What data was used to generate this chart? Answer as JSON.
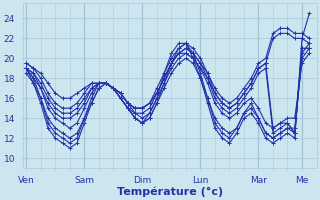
{
  "background_color": "#cce5ee",
  "grid_color": "#aaccdd",
  "line_color": "#2233aa",
  "marker": "+",
  "marker_size": 3,
  "linewidth": 0.8,
  "xlabel": "Température (°c)",
  "xlabel_fontsize": 8,
  "ytick_labels": [
    "10",
    "12",
    "14",
    "16",
    "18",
    "20",
    "22",
    "24"
  ],
  "ytick_values": [
    10,
    12,
    14,
    16,
    18,
    20,
    22,
    24
  ],
  "ylim": [
    9.0,
    25.5
  ],
  "xtick_labels": [
    "Ven",
    "Sam",
    "Dim",
    "Lun",
    "Mar",
    "Me"
  ],
  "xtick_positions": [
    0,
    8,
    16,
    24,
    32,
    38
  ],
  "xlim": [
    -0.5,
    40
  ],
  "minor_xtick_step": 2,
  "series": [
    [
      19.0,
      18.0,
      16.0,
      13.5,
      12.5,
      12.0,
      11.5,
      12.0,
      14.0,
      16.0,
      17.5,
      17.5,
      17.0,
      16.0,
      15.0,
      14.0,
      13.5,
      14.0,
      15.5,
      17.5,
      19.5,
      21.0,
      21.5,
      20.5,
      18.5,
      16.0,
      13.5,
      12.5,
      12.0,
      13.0,
      14.5,
      15.0,
      14.0,
      12.5,
      12.0,
      12.5,
      13.0,
      12.5,
      21.0,
      21.0
    ],
    [
      19.0,
      17.5,
      15.5,
      13.0,
      12.0,
      11.5,
      11.0,
      11.5,
      13.5,
      15.5,
      17.0,
      17.5,
      17.0,
      16.0,
      15.0,
      14.0,
      13.5,
      14.5,
      16.0,
      18.5,
      20.5,
      21.5,
      21.5,
      20.0,
      18.0,
      15.5,
      13.0,
      12.0,
      11.5,
      12.5,
      14.0,
      14.5,
      13.5,
      12.0,
      11.5,
      12.0,
      12.5,
      12.0,
      22.0,
      24.5
    ],
    [
      19.0,
      18.5,
      17.0,
      15.0,
      14.0,
      13.5,
      13.0,
      13.5,
      15.0,
      16.5,
      17.5,
      17.5,
      17.0,
      16.0,
      15.0,
      14.5,
      14.0,
      14.5,
      16.0,
      17.5,
      19.0,
      20.0,
      20.5,
      20.0,
      19.0,
      17.5,
      15.5,
      14.5,
      14.0,
      14.5,
      15.5,
      16.0,
      15.0,
      13.5,
      13.0,
      13.5,
      14.0,
      14.0,
      19.5,
      20.5
    ],
    [
      19.5,
      19.0,
      18.0,
      16.5,
      15.5,
      15.0,
      15.0,
      15.5,
      16.5,
      17.5,
      17.5,
      17.5,
      17.0,
      16.5,
      15.5,
      15.0,
      15.0,
      15.5,
      16.5,
      18.0,
      19.5,
      20.5,
      20.5,
      20.0,
      19.0,
      18.0,
      16.5,
      15.5,
      15.0,
      15.5,
      16.5,
      17.5,
      19.0,
      19.5,
      22.0,
      22.5,
      22.5,
      22.0,
      22.0,
      21.5
    ],
    [
      19.5,
      19.0,
      18.5,
      17.5,
      16.5,
      16.0,
      16.0,
      16.5,
      17.0,
      17.5,
      17.5,
      17.5,
      17.0,
      16.5,
      15.5,
      15.0,
      15.0,
      15.5,
      16.5,
      18.0,
      19.5,
      20.5,
      21.0,
      20.5,
      19.5,
      18.5,
      17.0,
      16.0,
      15.5,
      16.0,
      17.0,
      18.0,
      19.5,
      20.0,
      22.5,
      23.0,
      23.0,
      22.5,
      22.5,
      22.0
    ],
    [
      18.5,
      17.5,
      16.0,
      14.0,
      13.0,
      12.5,
      12.0,
      12.5,
      14.0,
      15.5,
      17.0,
      17.5,
      17.0,
      16.0,
      15.0,
      14.0,
      13.5,
      14.0,
      15.5,
      17.0,
      18.5,
      19.5,
      20.0,
      19.5,
      18.0,
      16.0,
      14.0,
      13.0,
      12.5,
      13.0,
      14.5,
      15.5,
      14.0,
      12.5,
      12.0,
      12.5,
      13.0,
      13.0,
      20.0,
      21.0
    ],
    [
      19.0,
      18.0,
      17.0,
      15.5,
      14.5,
      14.0,
      14.0,
      14.5,
      15.5,
      17.0,
      17.5,
      17.5,
      17.0,
      16.5,
      15.5,
      14.5,
      14.5,
      15.0,
      16.5,
      18.0,
      19.5,
      20.5,
      21.0,
      20.5,
      19.5,
      18.0,
      16.0,
      15.0,
      14.5,
      15.0,
      16.0,
      17.0,
      18.5,
      19.0,
      12.5,
      13.0,
      13.5,
      12.5,
      20.5,
      21.5
    ],
    [
      19.0,
      18.5,
      17.5,
      16.0,
      15.0,
      14.5,
      14.5,
      15.0,
      16.0,
      17.0,
      17.5,
      17.5,
      17.0,
      16.5,
      15.5,
      15.0,
      15.0,
      15.5,
      17.0,
      18.5,
      20.0,
      21.0,
      21.5,
      21.0,
      20.0,
      18.5,
      16.5,
      15.5,
      15.0,
      15.5,
      16.5,
      17.5,
      19.0,
      19.5,
      13.0,
      13.5,
      13.5,
      12.5,
      21.0,
      21.0
    ]
  ],
  "n_points": 40,
  "figsize": [
    3.2,
    2.0
  ],
  "dpi": 100
}
